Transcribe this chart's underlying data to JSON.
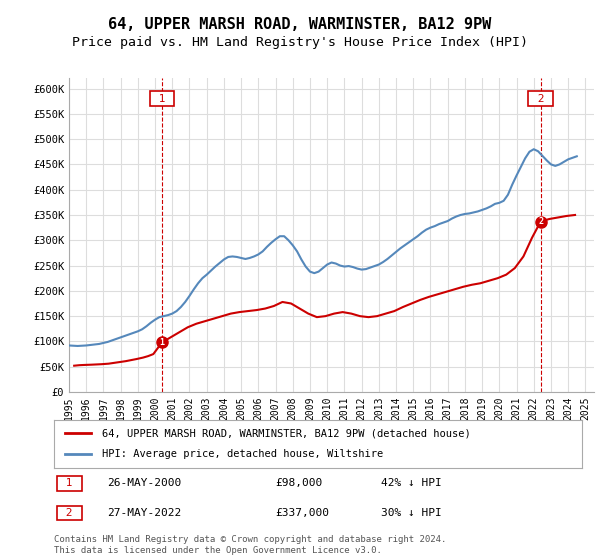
{
  "title": "64, UPPER MARSH ROAD, WARMINSTER, BA12 9PW",
  "subtitle": "Price paid vs. HM Land Registry's House Price Index (HPI)",
  "ylabel": "",
  "ylim": [
    0,
    620000
  ],
  "yticks": [
    0,
    50000,
    100000,
    150000,
    200000,
    250000,
    300000,
    350000,
    400000,
    450000,
    500000,
    550000,
    600000
  ],
  "ytick_labels": [
    "£0",
    "£50K",
    "£100K",
    "£150K",
    "£200K",
    "£250K",
    "£300K",
    "£350K",
    "£400K",
    "£450K",
    "£500K",
    "£550K",
    "£600K"
  ],
  "xlim_start": 1995.0,
  "xlim_end": 2025.5,
  "title_fontsize": 11,
  "subtitle_fontsize": 9.5,
  "background_color": "#ffffff",
  "grid_color": "#dddddd",
  "transaction_color": "#cc0000",
  "hpi_color": "#6699cc",
  "hpi_line_color": "#5588bb",
  "marker1_year": 2000.4,
  "marker1_value": 98000,
  "marker2_year": 2022.4,
  "marker2_value": 337000,
  "legend_line1": "64, UPPER MARSH ROAD, WARMINSTER, BA12 9PW (detached house)",
  "legend_line2": "HPI: Average price, detached house, Wiltshire",
  "table_row1": "1    26-MAY-2000         £98,000         42% ↓ HPI",
  "table_row2": "2    27-MAY-2022         £337,000        30% ↓ HPI",
  "footnote1": "Contains HM Land Registry data © Crown copyright and database right 2024.",
  "footnote2": "This data is licensed under the Open Government Licence v3.0.",
  "hpi_x": [
    1995.0,
    1995.25,
    1995.5,
    1995.75,
    1996.0,
    1996.25,
    1996.5,
    1996.75,
    1997.0,
    1997.25,
    1997.5,
    1997.75,
    1998.0,
    1998.25,
    1998.5,
    1998.75,
    1999.0,
    1999.25,
    1999.5,
    1999.75,
    2000.0,
    2000.25,
    2000.5,
    2000.75,
    2001.0,
    2001.25,
    2001.5,
    2001.75,
    2002.0,
    2002.25,
    2002.5,
    2002.75,
    2003.0,
    2003.25,
    2003.5,
    2003.75,
    2004.0,
    2004.25,
    2004.5,
    2004.75,
    2005.0,
    2005.25,
    2005.5,
    2005.75,
    2006.0,
    2006.25,
    2006.5,
    2006.75,
    2007.0,
    2007.25,
    2007.5,
    2007.75,
    2008.0,
    2008.25,
    2008.5,
    2008.75,
    2009.0,
    2009.25,
    2009.5,
    2009.75,
    2010.0,
    2010.25,
    2010.5,
    2010.75,
    2011.0,
    2011.25,
    2011.5,
    2011.75,
    2012.0,
    2012.25,
    2012.5,
    2012.75,
    2013.0,
    2013.25,
    2013.5,
    2013.75,
    2014.0,
    2014.25,
    2014.5,
    2014.75,
    2015.0,
    2015.25,
    2015.5,
    2015.75,
    2016.0,
    2016.25,
    2016.5,
    2016.75,
    2017.0,
    2017.25,
    2017.5,
    2017.75,
    2018.0,
    2018.25,
    2018.5,
    2018.75,
    2019.0,
    2019.25,
    2019.5,
    2019.75,
    2020.0,
    2020.25,
    2020.5,
    2020.75,
    2021.0,
    2021.25,
    2021.5,
    2021.75,
    2022.0,
    2022.25,
    2022.5,
    2022.75,
    2023.0,
    2023.25,
    2023.5,
    2023.75,
    2024.0,
    2024.25,
    2024.5
  ],
  "hpi_y": [
    92000,
    91500,
    91000,
    91500,
    92000,
    93000,
    94000,
    95000,
    97000,
    99000,
    102000,
    105000,
    108000,
    111000,
    114000,
    117000,
    120000,
    124000,
    130000,
    137000,
    143000,
    148000,
    150000,
    152000,
    155000,
    160000,
    168000,
    178000,
    190000,
    203000,
    215000,
    225000,
    232000,
    240000,
    248000,
    255000,
    262000,
    267000,
    268000,
    267000,
    265000,
    263000,
    265000,
    268000,
    272000,
    278000,
    287000,
    295000,
    302000,
    308000,
    308000,
    300000,
    290000,
    278000,
    262000,
    248000,
    238000,
    235000,
    238000,
    245000,
    252000,
    256000,
    254000,
    250000,
    248000,
    249000,
    247000,
    244000,
    242000,
    243000,
    246000,
    249000,
    252000,
    257000,
    263000,
    270000,
    277000,
    284000,
    290000,
    296000,
    302000,
    308000,
    315000,
    321000,
    325000,
    328000,
    332000,
    335000,
    338000,
    343000,
    347000,
    350000,
    352000,
    353000,
    355000,
    357000,
    360000,
    363000,
    367000,
    372000,
    374000,
    378000,
    390000,
    410000,
    428000,
    445000,
    462000,
    475000,
    480000,
    476000,
    467000,
    458000,
    450000,
    447000,
    450000,
    455000,
    460000,
    463000,
    466000
  ],
  "price_x": [
    1995.3,
    1995.6,
    1995.9,
    1996.3,
    1996.6,
    1996.9,
    1997.3,
    1997.6,
    1997.9,
    1998.3,
    1998.6,
    1998.9,
    1999.3,
    1999.6,
    1999.9,
    2000.4,
    2001.0,
    2001.5,
    2001.9,
    2002.4,
    2002.9,
    2003.4,
    2003.9,
    2004.4,
    2004.9,
    2005.4,
    2005.9,
    2006.4,
    2006.9,
    2007.4,
    2007.9,
    2008.4,
    2008.9,
    2009.4,
    2009.9,
    2010.4,
    2010.9,
    2011.4,
    2011.9,
    2012.4,
    2012.9,
    2013.4,
    2013.9,
    2014.4,
    2014.9,
    2015.4,
    2015.9,
    2016.4,
    2016.9,
    2017.4,
    2017.9,
    2018.4,
    2018.9,
    2019.4,
    2019.9,
    2020.4,
    2020.9,
    2021.4,
    2021.9,
    2022.4,
    2022.9,
    2023.4,
    2023.9,
    2024.4
  ],
  "price_y": [
    52000,
    53000,
    53500,
    54000,
    54500,
    55000,
    56000,
    57500,
    59000,
    61000,
    63000,
    65000,
    68000,
    71000,
    75000,
    98000,
    110000,
    120000,
    128000,
    135000,
    140000,
    145000,
    150000,
    155000,
    158000,
    160000,
    162000,
    165000,
    170000,
    178000,
    175000,
    165000,
    155000,
    148000,
    150000,
    155000,
    158000,
    155000,
    150000,
    148000,
    150000,
    155000,
    160000,
    168000,
    175000,
    182000,
    188000,
    193000,
    198000,
    203000,
    208000,
    212000,
    215000,
    220000,
    225000,
    232000,
    245000,
    268000,
    305000,
    337000,
    342000,
    345000,
    348000,
    350000
  ]
}
